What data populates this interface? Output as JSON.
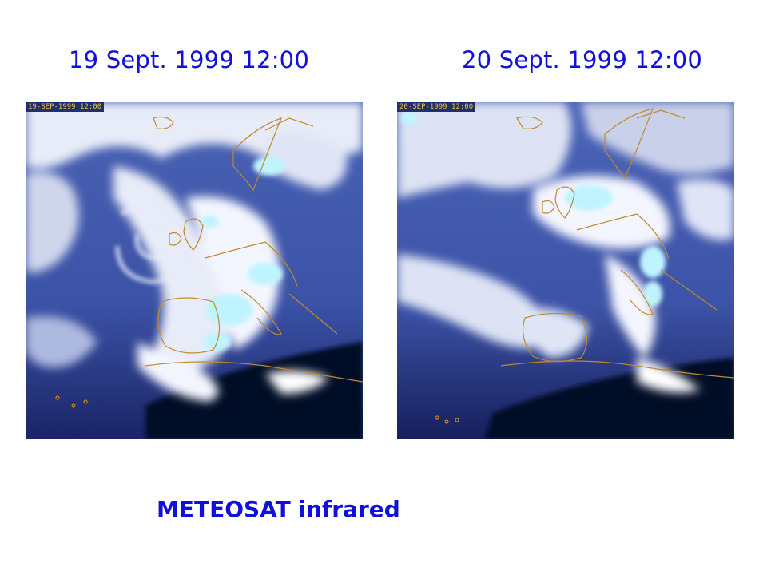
{
  "panels": [
    {
      "heading": "19 Sept. 1999 12:00",
      "stamp": "19-SEP-1999 12:00"
    },
    {
      "heading": "20 Sept. 1999 12:00",
      "stamp": "20-SEP-1999 12:00"
    }
  ],
  "caption": "METEOSAT infrared",
  "colors": {
    "text": "#1010d8",
    "ocean": "#3c55a8",
    "dark_sea": "#060a28",
    "cloud": "#f4f6ff",
    "cold_top": "#bff4ff",
    "coastline": "#c08a2a"
  }
}
